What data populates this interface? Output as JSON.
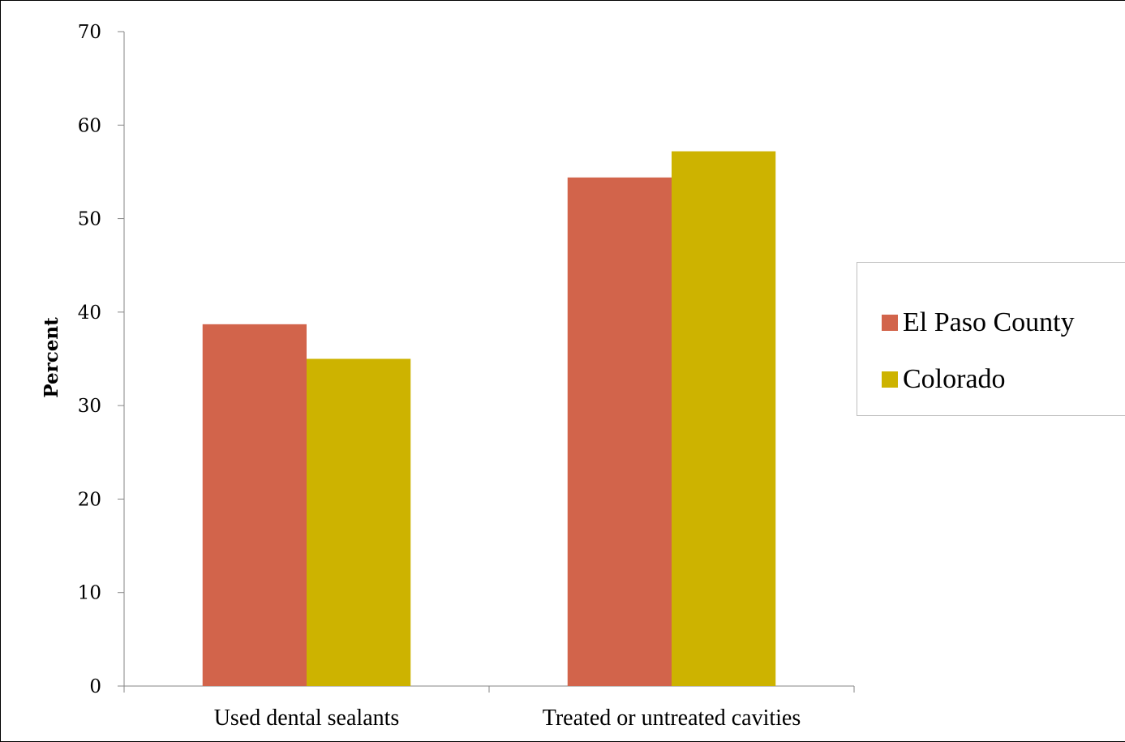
{
  "chart_data": {
    "type": "bar",
    "categories": [
      "Used dental sealants",
      "Treated or untreated cavities"
    ],
    "series": [
      {
        "name": "El Paso County",
        "values": [
          38.7,
          54.4
        ],
        "color": "#d2644b"
      },
      {
        "name": "Colorado",
        "values": [
          35.0,
          57.2
        ],
        "color": "#cdb300"
      }
    ],
    "ylabel": "Percent",
    "xlabel": "",
    "ylim": [
      0,
      70
    ],
    "yticks": [
      0,
      10,
      20,
      30,
      40,
      50,
      60,
      70
    ],
    "grid": false,
    "legend_position": "right"
  }
}
